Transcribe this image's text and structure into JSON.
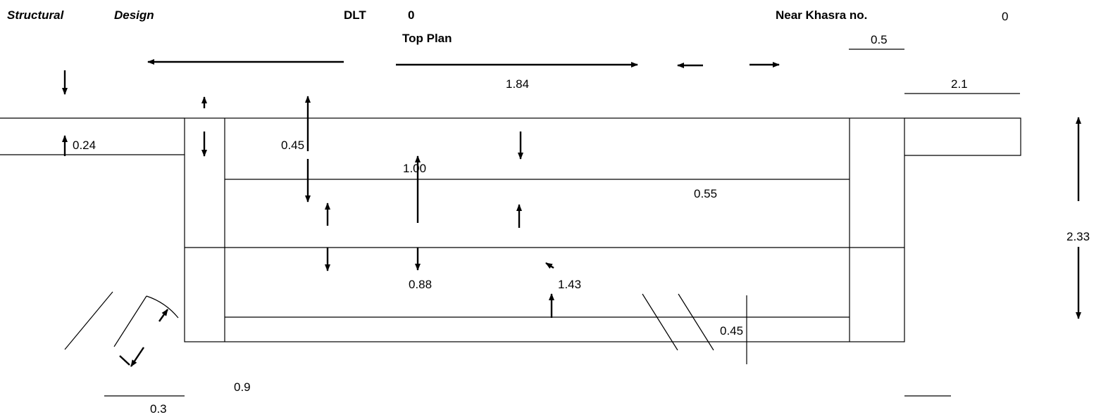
{
  "header": {
    "title_part1": "Structural",
    "title_part2": "Design",
    "dlt_label": "DLT",
    "dlt_value": "0",
    "near_label": "Near Khasra no.",
    "near_value": "0",
    "plan_title": "Top Plan"
  },
  "dimensions": {
    "d_0_5": "0.5",
    "d_1_84": "1.84",
    "d_2_1": "2.1",
    "d_0_24": "0.24",
    "d_0_45_top": "0.45",
    "d_1_00": "1.00",
    "d_0_55": "0.55",
    "d_2_33": "2.33",
    "d_0_88": "0.88",
    "d_1_43": "1.43",
    "d_0_45_bottom": "0.45",
    "d_0_9": "0.9",
    "d_0_3": "0.3"
  }
}
